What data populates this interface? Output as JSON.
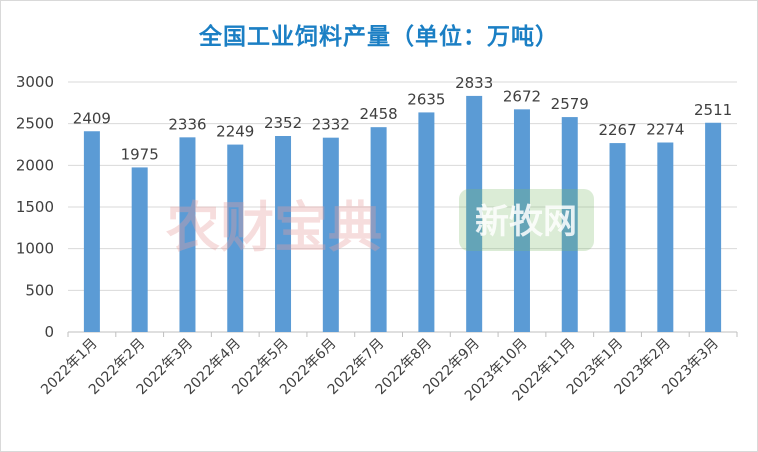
{
  "chart_data": {
    "type": "bar",
    "title": "全国工业饲料产量（单位：万吨）",
    "categories": [
      "2022年1月",
      "2022年2月",
      "2022年3月",
      "2022年4月",
      "2022年5月",
      "2022年6月",
      "2022年7月",
      "2022年8月",
      "2022年9月",
      "2023年10月",
      "2022年11月",
      "2023年1月",
      "2023年2月",
      "2023年3月"
    ],
    "values": [
      2409,
      1975,
      2336,
      2249,
      2352,
      2332,
      2458,
      2635,
      2833,
      2672,
      2579,
      2267,
      2274,
      2511
    ],
    "ylim": [
      0,
      3000
    ],
    "yticks": [
      0,
      500,
      1000,
      1500,
      2000,
      2500,
      3000
    ],
    "bar_color": "#5b9bd5",
    "grid": true
  },
  "watermarks": {
    "left_text": "农财宝典",
    "right_text": "新牧网"
  }
}
